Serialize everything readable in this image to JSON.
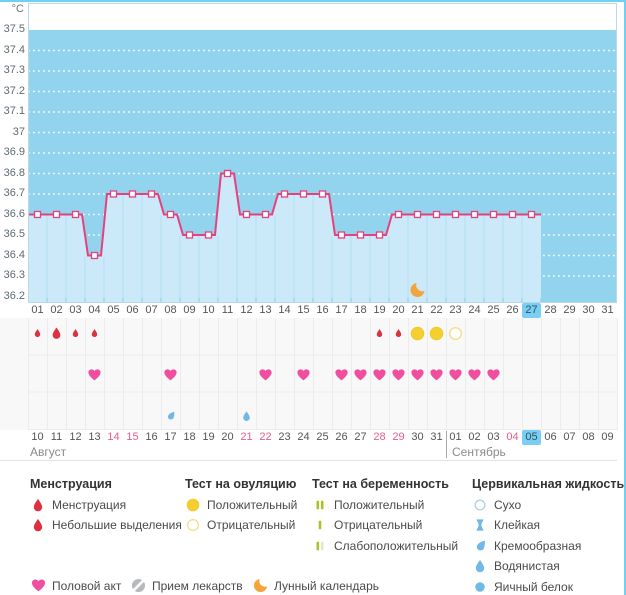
{
  "colors": {
    "chart_bg": "#92d3ee",
    "chart_fill": "#cbe9f9",
    "fill_separator": "#b0dff4",
    "bottom_ticks": "#8fc9e6",
    "line": "#e5427d",
    "plot_border": "#b9d9e8",
    "grid_dots": "#ffffff",
    "today_bg": "#79cef3",
    "weekend_text": "#e55e87",
    "menstruation_red": "#dd3140",
    "heart_pink": "#ef4f9e",
    "test_yellow": "#f5cf2f",
    "test_yellow_outline": "#f2dd88",
    "pregnancy_green": "#a7c32d",
    "pregnancy_pale": "#e2e8c8",
    "cervical_blue": "#72b8e6",
    "cervical_outline": "#a3cfec",
    "pill_gray": "#b7babd",
    "moon_orange": "#f3a43b"
  },
  "chart_data": {
    "type": "line",
    "title": "",
    "ylabel": "°C",
    "ylim": [
      36.2,
      37.5
    ],
    "ytick_step": 0.1,
    "y_ticks": [
      "37.5",
      "37.4",
      "37.3",
      "37.2",
      "37.1",
      "37",
      "36.9",
      "36.8",
      "36.7",
      "36.6",
      "36.5",
      "36.4",
      "36.3",
      "36.2"
    ],
    "x_cycle_days": [
      "01",
      "02",
      "03",
      "04",
      "05",
      "06",
      "07",
      "08",
      "09",
      "10",
      "11",
      "12",
      "13",
      "14",
      "15",
      "16",
      "17",
      "18",
      "19",
      "20",
      "21",
      "22",
      "23",
      "24",
      "25",
      "26",
      "27",
      "28",
      "29",
      "30",
      "31"
    ],
    "values": [
      36.6,
      36.6,
      36.6,
      36.4,
      36.7,
      36.7,
      36.7,
      36.6,
      36.5,
      36.5,
      36.8,
      36.6,
      36.6,
      36.7,
      36.7,
      36.7,
      36.5,
      36.5,
      36.5,
      36.6,
      36.6,
      36.6,
      36.6,
      36.6,
      36.6,
      36.6,
      36.6,
      null,
      null,
      null,
      null
    ],
    "today_cycle_day": "27",
    "lunar_calendar_day": "21"
  },
  "calendar": {
    "dates": [
      {
        "label": "10",
        "weekend": false
      },
      {
        "label": "11",
        "weekend": false
      },
      {
        "label": "12",
        "weekend": false
      },
      {
        "label": "13",
        "weekend": false
      },
      {
        "label": "14",
        "weekend": true
      },
      {
        "label": "15",
        "weekend": true
      },
      {
        "label": "16",
        "weekend": false
      },
      {
        "label": "17",
        "weekend": false
      },
      {
        "label": "18",
        "weekend": false
      },
      {
        "label": "19",
        "weekend": false
      },
      {
        "label": "20",
        "weekend": false
      },
      {
        "label": "21",
        "weekend": true
      },
      {
        "label": "22",
        "weekend": true
      },
      {
        "label": "23",
        "weekend": false
      },
      {
        "label": "24",
        "weekend": false
      },
      {
        "label": "25",
        "weekend": false
      },
      {
        "label": "26",
        "weekend": false
      },
      {
        "label": "27",
        "weekend": false
      },
      {
        "label": "28",
        "weekend": true
      },
      {
        "label": "29",
        "weekend": true
      },
      {
        "label": "30",
        "weekend": false
      },
      {
        "label": "31",
        "weekend": false
      },
      {
        "label": "01",
        "weekend": false
      },
      {
        "label": "02",
        "weekend": false
      },
      {
        "label": "03",
        "weekend": false
      },
      {
        "label": "04",
        "weekend": true
      },
      {
        "label": "05",
        "weekend": false
      },
      {
        "label": "06",
        "weekend": false
      },
      {
        "label": "07",
        "weekend": false
      },
      {
        "label": "08",
        "weekend": false
      },
      {
        "label": "09",
        "weekend": false
      }
    ],
    "today_index": 26,
    "september_start_index": 22,
    "months": [
      {
        "name": "Август"
      },
      {
        "name": "Сентябрь"
      }
    ]
  },
  "events": {
    "bleeding": [
      {
        "day": 1,
        "intensity": "spotting"
      },
      {
        "day": 2,
        "intensity": "period"
      },
      {
        "day": 3,
        "intensity": "spotting"
      },
      {
        "day": 4,
        "intensity": "spotting"
      },
      {
        "day": 19,
        "intensity": "spotting"
      },
      {
        "day": 20,
        "intensity": "spotting"
      }
    ],
    "ovulation_tests": [
      {
        "day": 21,
        "result": "positive"
      },
      {
        "day": 22,
        "result": "positive"
      },
      {
        "day": 23,
        "result": "negative"
      }
    ],
    "intercourse_days": [
      4,
      8,
      13,
      15,
      17,
      18,
      19,
      20,
      21,
      22,
      23,
      24,
      25
    ],
    "cervical_fluid": [
      {
        "day": 8,
        "type": "creamy"
      },
      {
        "day": 12,
        "type": "watery"
      }
    ]
  },
  "legend": {
    "columns": [
      {
        "title": "Менструация",
        "items": [
          {
            "icon": "drop-large",
            "label": "Менструация"
          },
          {
            "icon": "drop-small",
            "label": "Небольшие выделения"
          }
        ]
      },
      {
        "title": "Тест на овуляцию",
        "items": [
          {
            "icon": "circle-yellow-filled",
            "label": "Положительный"
          },
          {
            "icon": "circle-yellow-outline",
            "label": "Отрицательный"
          }
        ]
      },
      {
        "title": "Тест на беременность",
        "items": [
          {
            "icon": "bars-double",
            "label": "Положительный"
          },
          {
            "icon": "bar-single",
            "label": "Отрицательный"
          },
          {
            "icon": "bars-weak",
            "label": "Слабоположительный"
          }
        ]
      },
      {
        "title": "Цервикальная жидкость",
        "items": [
          {
            "icon": "circle-blue-outline",
            "label": "Сухо"
          },
          {
            "icon": "sticky",
            "label": "Клейкая"
          },
          {
            "icon": "creamy",
            "label": "Кремообразная"
          },
          {
            "icon": "watery",
            "label": "Водянистая"
          },
          {
            "icon": "egg-white",
            "label": "Яичный белок"
          }
        ]
      }
    ],
    "bottom_items": [
      {
        "icon": "heart",
        "label": "Половой акт"
      },
      {
        "icon": "pill",
        "label": "Прием лекарств"
      },
      {
        "icon": "moon",
        "label": "Лунный календарь"
      }
    ]
  }
}
